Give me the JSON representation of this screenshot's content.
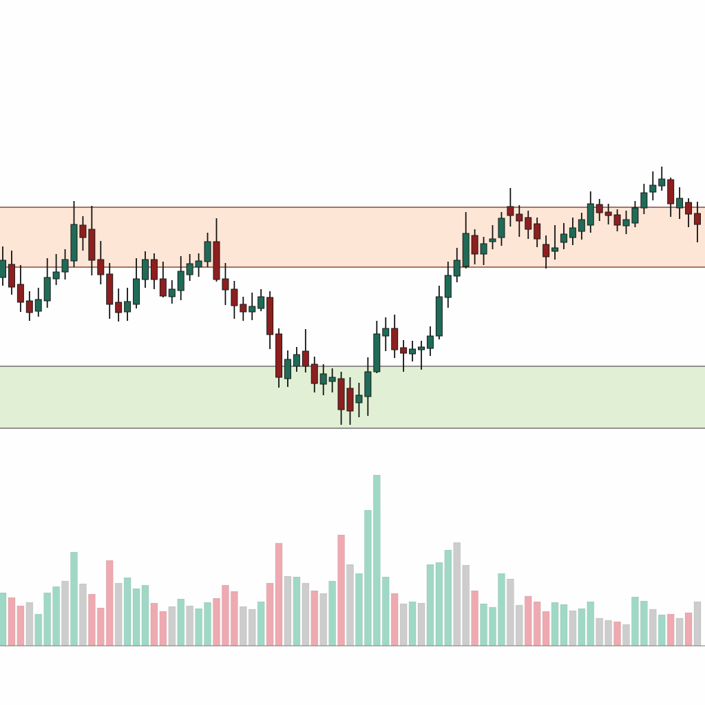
{
  "chart_data": {
    "type": "candlestick",
    "title": "",
    "xlabel": "",
    "ylabel": "",
    "grid": false,
    "colors": {
      "up": "#1f6b57",
      "down": "#8e1f1f",
      "volume_up": "#9fd9c6",
      "volume_down": "#eeaab0",
      "volume_neutral": "#cdcdcd",
      "resistance_zone": "#fde6d6",
      "resistance_line": "#6b2a1a",
      "support_zone": "#e1efd4",
      "support_line": "#555555"
    },
    "zones": [
      {
        "type": "resistance",
        "low": 61.2,
        "high": 69.9
      },
      {
        "type": "support",
        "low": 37.8,
        "high": 46.8
      }
    ],
    "ohlc": [
      [
        59.7,
        64.2,
        58.5,
        62.2
      ],
      [
        61.6,
        63.6,
        57.2,
        58.3
      ],
      [
        58.7,
        61.5,
        54.7,
        56.1
      ],
      [
        56.3,
        57.7,
        53.4,
        54.6
      ],
      [
        54.8,
        58.2,
        54.0,
        56.5
      ],
      [
        56.3,
        62.5,
        55.3,
        59.7
      ],
      [
        59.5,
        63.1,
        58.6,
        60.5
      ],
      [
        60.5,
        63.8,
        59.4,
        62.3
      ],
      [
        62.1,
        70.8,
        61.2,
        67.4
      ],
      [
        67.3,
        68.6,
        63.6,
        65.5
      ],
      [
        66.7,
        70.1,
        60.0,
        62.2
      ],
      [
        62.3,
        65.0,
        58.7,
        60.1
      ],
      [
        60.2,
        61.8,
        53.7,
        55.8
      ],
      [
        56.1,
        58.1,
        53.3,
        54.6
      ],
      [
        54.7,
        58.2,
        53.4,
        56.2
      ],
      [
        55.8,
        62.5,
        55.2,
        59.5
      ],
      [
        59.4,
        63.5,
        58.2,
        62.3
      ],
      [
        62.3,
        63.2,
        58.0,
        59.4
      ],
      [
        59.5,
        62.0,
        56.8,
        57.0
      ],
      [
        56.9,
        59.3,
        55.9,
        58.0
      ],
      [
        57.8,
        62.8,
        56.4,
        60.6
      ],
      [
        60.1,
        63.1,
        59.2,
        61.7
      ],
      [
        61.2,
        63.2,
        59.8,
        62.1
      ],
      [
        62.0,
        66.2,
        61.2,
        64.9
      ],
      [
        64.9,
        68.3,
        59.1,
        59.4
      ],
      [
        59.5,
        61.8,
        55.7,
        57.9
      ],
      [
        58.0,
        59.2,
        53.7,
        55.6
      ],
      [
        55.8,
        56.9,
        53.4,
        54.7
      ],
      [
        54.7,
        57.5,
        53.5,
        55.5
      ],
      [
        55.2,
        58.0,
        54.8,
        56.9
      ],
      [
        56.8,
        57.7,
        49.3,
        51.4
      ],
      [
        51.5,
        52.3,
        43.7,
        45.2
      ],
      [
        45.0,
        49.1,
        43.8,
        47.8
      ],
      [
        46.8,
        49.6,
        46.0,
        48.5
      ],
      [
        49.0,
        52.2,
        45.9,
        46.8
      ],
      [
        47.1,
        48.2,
        43.0,
        44.3
      ],
      [
        44.2,
        47.1,
        42.6,
        45.7
      ],
      [
        44.6,
        46.5,
        43.0,
        45.2
      ],
      [
        45.0,
        46.0,
        38.3,
        40.5
      ],
      [
        43.6,
        45.2,
        38.3,
        40.3
      ],
      [
        41.5,
        44.4,
        39.4,
        42.6
      ],
      [
        42.4,
        48.1,
        39.6,
        46.0
      ],
      [
        46.0,
        53.4,
        45.8,
        51.5
      ],
      [
        51.2,
        53.9,
        49.0,
        52.3
      ],
      [
        52.3,
        54.3,
        48.0,
        49.2
      ],
      [
        49.5,
        50.6,
        46.0,
        48.7
      ],
      [
        48.6,
        50.5,
        47.5,
        49.3
      ],
      [
        49.2,
        50.5,
        46.3,
        49.6
      ],
      [
        49.4,
        52.6,
        48.3,
        51.2
      ],
      [
        51.2,
        58.5,
        50.7,
        56.9
      ],
      [
        56.8,
        62.0,
        55.3,
        60.0
      ],
      [
        59.9,
        64.0,
        59.0,
        62.2
      ],
      [
        61.3,
        69.2,
        61.0,
        66.1
      ],
      [
        65.8,
        66.7,
        61.6,
        63.1
      ],
      [
        63.1,
        65.6,
        61.5,
        64.6
      ],
      [
        64.9,
        67.3,
        63.8,
        65.3
      ],
      [
        65.5,
        69.2,
        64.3,
        68.3
      ],
      [
        70.0,
        72.7,
        67.1,
        68.7
      ],
      [
        68.9,
        70.2,
        65.6,
        67.9
      ],
      [
        68.4,
        69.4,
        65.3,
        66.7
      ],
      [
        67.5,
        68.4,
        64.1,
        65.3
      ],
      [
        64.5,
        65.8,
        61.0,
        62.7
      ],
      [
        63.5,
        67.3,
        62.3,
        64.0
      ],
      [
        64.8,
        67.6,
        63.8,
        66.0
      ],
      [
        65.5,
        68.4,
        64.4,
        66.9
      ],
      [
        66.4,
        69.1,
        65.2,
        68.1
      ],
      [
        67.3,
        72.2,
        66.2,
        70.4
      ],
      [
        70.3,
        71.1,
        67.9,
        69.1
      ],
      [
        69.2,
        70.4,
        67.4,
        68.7
      ],
      [
        68.8,
        69.6,
        66.4,
        67.3
      ],
      [
        67.2,
        69.4,
        66.0,
        68.1
      ],
      [
        67.6,
        70.8,
        67.0,
        69.8
      ],
      [
        69.8,
        73.3,
        68.9,
        72.0
      ],
      [
        72.1,
        75.1,
        70.9,
        73.1
      ],
      [
        73.0,
        75.8,
        72.3,
        74.0
      ],
      [
        73.9,
        74.2,
        68.5,
        70.4
      ],
      [
        69.8,
        72.8,
        68.2,
        71.2
      ],
      [
        70.6,
        71.2,
        67.0,
        68.9
      ],
      [
        69.0,
        70.7,
        64.8,
        67.4
      ]
    ],
    "volume": [
      770,
      700,
      580,
      630,
      460,
      770,
      860,
      940,
      1360,
      900,
      750,
      550,
      1240,
      910,
      990,
      830,
      880,
      620,
      500,
      570,
      680,
      580,
      540,
      630,
      690,
      880,
      790,
      570,
      530,
      640,
      910,
      1490,
      1010,
      1000,
      910,
      800,
      760,
      940,
      1610,
      1180,
      1050,
      1970,
      2480,
      1000,
      760,
      610,
      640,
      620,
      1180,
      1210,
      1390,
      1500,
      1170,
      800,
      610,
      560,
      1050,
      970,
      590,
      720,
      640,
      500,
      630,
      600,
      510,
      540,
      640,
      400,
      370,
      350,
      310,
      710,
      650,
      530,
      450,
      460,
      400,
      480,
      640
    ],
    "volume_colors": "grrngggngnrrrngggrrngnggrrrnngrrngnrngrnggggrngngggnnrgggnnrrrggnggnnrnggngrnrn"
  }
}
